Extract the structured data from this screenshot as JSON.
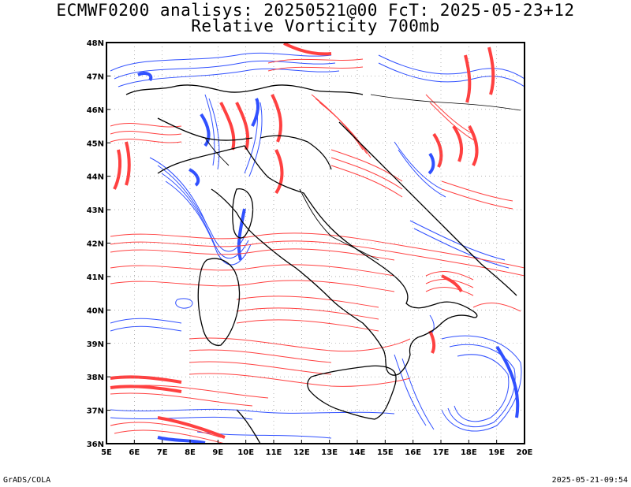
{
  "header": {
    "title_line1": "ECMWF0200 analisys: 20250521@00 FcT: 2025-05-23+12",
    "title_line2": "Relative Vorticity 700mb"
  },
  "map": {
    "lon_range": [
      5,
      20
    ],
    "lat_range": [
      36,
      48
    ],
    "lon_labels": [
      "5E",
      "6E",
      "7E",
      "8E",
      "9E",
      "10E",
      "11E",
      "12E",
      "13E",
      "14E",
      "15E",
      "16E",
      "17E",
      "18E",
      "19E",
      "20E"
    ],
    "lat_labels": [
      "36N",
      "37N",
      "38N",
      "39N",
      "40N",
      "41N",
      "42N",
      "43N",
      "44N",
      "45N",
      "46N",
      "47N",
      "48N"
    ],
    "contour_colors": {
      "positive": "#ff4040",
      "negative": "#3050ff",
      "coast": "#000000"
    }
  },
  "footer": {
    "left": "GrADS/COLA",
    "right": "2025-05-21-09:54"
  }
}
